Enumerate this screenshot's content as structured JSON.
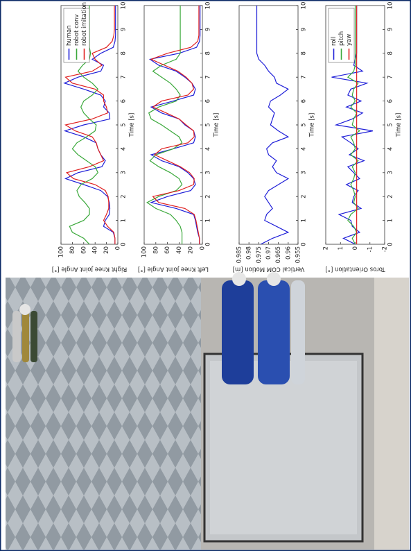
{
  "chart_data": [
    {
      "type": "line",
      "ylabel": "Right Knee Joint Angle [°]",
      "xlabel": "Time [s]",
      "x": [
        0,
        0.25,
        0.5,
        0.75,
        1,
        1.25,
        1.5,
        1.75,
        2,
        2.25,
        2.5,
        2.75,
        3,
        3.25,
        3.5,
        3.75,
        4,
        4.25,
        4.5,
        4.75,
        5,
        5.25,
        5.5,
        5.75,
        6,
        6.25,
        6.5,
        6.75,
        7,
        7.25,
        7.5,
        7.75,
        8,
        8.25,
        8.5,
        8.75,
        9,
        9.25,
        9.5,
        9.75,
        10
      ],
      "xlim": [
        0,
        10
      ],
      "xticks": [
        0,
        1,
        2,
        3,
        4,
        5,
        6,
        7,
        8,
        9,
        10
      ],
      "ylim": [
        0,
        100
      ],
      "yticks": [
        0,
        20,
        40,
        60,
        80,
        100
      ],
      "legend": "upper right",
      "series": [
        {
          "name": "human",
          "color": "#1f1fd8",
          "values": [
            5,
            5,
            8,
            25,
            22,
            15,
            14,
            15,
            18,
            30,
            60,
            92,
            70,
            28,
            22,
            30,
            35,
            38,
            60,
            93,
            60,
            14,
            15,
            25,
            22,
            30,
            60,
            94,
            70,
            30,
            25,
            45,
            30,
            8,
            5,
            4,
            4,
            4,
            4,
            4,
            4
          ]
        },
        {
          "name": "robot conv",
          "color": "#3aa83a",
          "values": [
            50,
            60,
            80,
            85,
            60,
            50,
            50,
            58,
            68,
            72,
            65,
            45,
            35,
            40,
            55,
            70,
            80,
            72,
            55,
            40,
            38,
            50,
            60,
            65,
            60,
            45,
            35,
            45,
            60,
            70,
            62,
            50,
            48,
            50,
            50,
            50,
            50,
            50,
            50,
            50,
            50
          ]
        },
        {
          "name": "robot imitation",
          "color": "#e02020",
          "values": [
            5,
            5,
            7,
            18,
            25,
            20,
            16,
            16,
            17,
            22,
            40,
            78,
            90,
            50,
            25,
            30,
            35,
            38,
            45,
            75,
            92,
            45,
            18,
            20,
            25,
            25,
            40,
            80,
            92,
            45,
            28,
            40,
            45,
            20,
            10,
            7,
            6,
            6,
            6,
            6,
            6
          ]
        }
      ]
    },
    {
      "type": "line",
      "ylabel": "Left Knee Joint Angle [°]",
      "xlabel": "Time [s]",
      "x": [
        0,
        0.25,
        0.5,
        0.75,
        1,
        1.25,
        1.5,
        1.75,
        2,
        2.25,
        2.5,
        2.75,
        3,
        3.25,
        3.5,
        3.75,
        4,
        4.25,
        4.5,
        4.75,
        5,
        5.25,
        5.5,
        5.75,
        6,
        6.25,
        6.5,
        6.75,
        7,
        7.25,
        7.5,
        7.75,
        8,
        8.25,
        8.5,
        8.75,
        9,
        9.25,
        9.5,
        9.75,
        10
      ],
      "xlim": [
        0,
        10
      ],
      "xticks": [
        0,
        1,
        2,
        3,
        4,
        5,
        6,
        7,
        8,
        9,
        10
      ],
      "ylim": [
        0,
        100
      ],
      "yticks": [
        0,
        20,
        40,
        60,
        80,
        100
      ],
      "series": [
        {
          "color": "#1f1fd8",
          "values": [
            5,
            5,
            8,
            10,
            12,
            15,
            45,
            88,
            60,
            20,
            12,
            15,
            25,
            40,
            70,
            88,
            50,
            15,
            12,
            15,
            30,
            40,
            70,
            88,
            50,
            15,
            12,
            18,
            30,
            45,
            75,
            90,
            40,
            10,
            5,
            4,
            4,
            4,
            4,
            4,
            4
          ]
        },
        {
          "color": "#3aa83a",
          "values": [
            35,
            35,
            35,
            38,
            45,
            55,
            80,
            95,
            75,
            45,
            35,
            40,
            55,
            75,
            90,
            80,
            50,
            35,
            40,
            55,
            70,
            88,
            92,
            75,
            45,
            38,
            45,
            55,
            70,
            85,
            70,
            45,
            38,
            38,
            38,
            38,
            38,
            38,
            38,
            38,
            38
          ]
        },
        {
          "color": "#e02020",
          "values": [
            5,
            5,
            7,
            9,
            11,
            14,
            30,
            75,
            85,
            40,
            15,
            14,
            22,
            38,
            60,
            82,
            70,
            25,
            14,
            15,
            28,
            40,
            62,
            85,
            70,
            25,
            15,
            18,
            28,
            42,
            65,
            88,
            60,
            20,
            8,
            6,
            6,
            6,
            6,
            6,
            6
          ]
        }
      ]
    },
    {
      "type": "line",
      "ylabel": "Vertical COM Motion [m]",
      "xlabel": "Time [s]",
      "x": [
        0,
        0.25,
        0.5,
        0.75,
        1,
        1.25,
        1.5,
        1.75,
        2,
        2.25,
        2.5,
        2.75,
        3,
        3.25,
        3.5,
        3.75,
        4,
        4.25,
        4.5,
        4.75,
        5,
        5.25,
        5.5,
        5.75,
        6,
        6.25,
        6.5,
        6.75,
        7,
        7.25,
        7.5,
        7.75,
        8,
        8.25,
        8.5,
        8.75,
        9,
        9.25,
        9.5,
        9.75,
        10
      ],
      "xlim": [
        0,
        10
      ],
      "xticks": [
        0,
        1,
        2,
        3,
        4,
        5,
        6,
        7,
        8,
        9,
        10
      ],
      "ylim": [
        0.955,
        0.985
      ],
      "yticks": [
        0.955,
        0.96,
        0.965,
        0.97,
        0.975,
        0.98,
        0.985
      ],
      "series": [
        {
          "color": "#1f1fd8",
          "values": [
            0.974,
            0.968,
            0.96,
            0.966,
            0.972,
            0.971,
            0.968,
            0.97,
            0.972,
            0.97,
            0.965,
            0.96,
            0.966,
            0.968,
            0.966,
            0.97,
            0.971,
            0.968,
            0.96,
            0.965,
            0.969,
            0.968,
            0.967,
            0.97,
            0.969,
            0.964,
            0.96,
            0.966,
            0.967,
            0.97,
            0.972,
            0.975,
            0.976,
            0.976,
            0.976,
            0.976,
            0.976,
            0.976,
            0.976,
            0.976,
            0.976
          ]
        }
      ]
    },
    {
      "type": "line",
      "ylabel": "Toros Orientation [°]",
      "xlabel": "Time [s]",
      "x": [
        0,
        0.25,
        0.5,
        0.75,
        1,
        1.25,
        1.5,
        1.75,
        2,
        2.25,
        2.5,
        2.75,
        3,
        3.25,
        3.5,
        3.75,
        4,
        4.25,
        4.5,
        4.75,
        5,
        5.25,
        5.5,
        5.75,
        6,
        6.25,
        6.5,
        6.75,
        7,
        7.25,
        7.5,
        7.75,
        8,
        8.25,
        8.5,
        8.75,
        9,
        9.25,
        9.5,
        9.75,
        10
      ],
      "xlim": [
        0,
        10
      ],
      "xticks": [
        0,
        1,
        2,
        3,
        4,
        5,
        6,
        7,
        8,
        9,
        10
      ],
      "ylim": [
        -2,
        2
      ],
      "yticks": [
        -2,
        -1,
        0,
        1,
        2
      ],
      "legend": "upper right",
      "series": [
        {
          "name": "roll",
          "color": "#1f1fd8",
          "values": [
            0,
            0.8,
            -0.3,
            0.2,
            0.3,
            1.1,
            -0.4,
            0.2,
            0.1,
            -0.2,
            0.6,
            -0.3,
            0.1,
            0.5,
            -0.6,
            0.4,
            -0.2,
            0.3,
            0.9,
            -1.2,
            1.3,
            0.2,
            -0.5,
            0.6,
            -0.4,
            0.5,
            0.3,
            -0.8,
            1.6,
            -0.5,
            0.1,
            0,
            -0.1,
            -0.1,
            -0.1,
            -0.1,
            -0.1,
            -0.1,
            -0.1,
            -0.1,
            -0.1
          ]
        },
        {
          "name": "pitch",
          "color": "#3aa83a",
          "values": [
            0,
            0.2,
            -0.1,
            0.1,
            0.5,
            0.3,
            -0.2,
            0.1,
            0,
            0.1,
            0.3,
            0.1,
            0,
            0.2,
            -0.2,
            0.3,
            0,
            0.1,
            0.3,
            -0.3,
            0.2,
            0.1,
            -0.1,
            0.3,
            0,
            0.2,
            0.1,
            -0.2,
            0.5,
            0.1,
            0,
            0,
            0,
            0,
            0,
            0,
            0,
            0,
            0,
            0,
            0
          ]
        },
        {
          "name": "yaw",
          "color": "#e02020",
          "values": [
            -0.1,
            -0.1,
            -0.1,
            -0.1,
            -0.1,
            -0.1,
            -0.1,
            -0.1,
            -0.1,
            -0.1,
            -0.1,
            -0.1,
            -0.1,
            -0.1,
            -0.1,
            -0.1,
            -0.1,
            -0.1,
            -0.1,
            -0.1,
            -0.1,
            -0.1,
            -0.1,
            -0.1,
            -0.1,
            -0.1,
            -0.1,
            -0.1,
            -0.1,
            -0.1,
            -0.1,
            -0.1,
            -0.1,
            -0.1,
            -0.1,
            -0.1,
            -0.1,
            -0.1,
            -0.1,
            -0.1,
            -0.1
          ]
        }
      ]
    }
  ]
}
